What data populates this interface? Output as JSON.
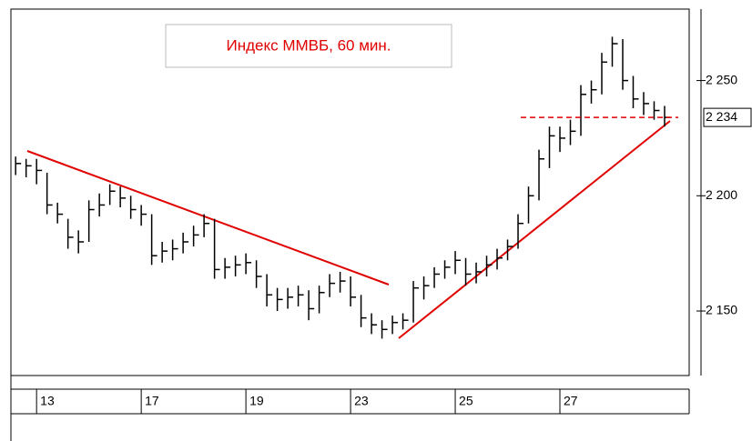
{
  "chart_data": {
    "type": "hlc",
    "title": "Индекс ММВБ, 60 мин.",
    "color": "#000000",
    "x": [
      -0.4,
      -0.2,
      0,
      0.2,
      0.4,
      0.6,
      0.8,
      1,
      1.2,
      1.4,
      1.6,
      1.8,
      2,
      2.2,
      2.4,
      2.6,
      2.8,
      3,
      3.2,
      3.4,
      3.6,
      3.8,
      4,
      4.2,
      4.4,
      4.6,
      4.8,
      5,
      5.2,
      5.4,
      5.6,
      5.8,
      6,
      6.2,
      6.4,
      6.6,
      6.8,
      7,
      7.2,
      7.4,
      7.6,
      7.8,
      8,
      8.2,
      8.4,
      8.6,
      8.8,
      9,
      9.2,
      9.4,
      9.6,
      9.8,
      10,
      10.2,
      10.4,
      10.6,
      10.8,
      11,
      11.2,
      11.4,
      11.6,
      11.8,
      12
    ],
    "close": [
      2214,
      2213,
      2211,
      2196,
      2192,
      2182,
      2180,
      2194,
      2196,
      2202,
      2199,
      2194,
      2192,
      2174,
      2176,
      2177,
      2180,
      2183,
      2188,
      2168,
      2169,
      2170,
      2171,
      2165,
      2157,
      2155,
      2156,
      2157,
      2151,
      2158,
      2162,
      2163,
      2156,
      2147,
      2144,
      2142,
      2145,
      2146,
      2160,
      2161,
      2166,
      2169,
      2172,
      2166,
      2167,
      2170,
      2173,
      2178,
      2188,
      2200,
      2216,
      2226,
      2225,
      2228,
      2244,
      2246,
      2258,
      2266,
      2250,
      2242,
      2240,
      2237,
      2234
    ],
    "high": [
      2217,
      2216,
      2216,
      2210,
      2197,
      2190,
      2185,
      2198,
      2201,
      2205,
      2204,
      2200,
      2196,
      2192,
      2180,
      2181,
      2184,
      2187,
      2192,
      2190,
      2173,
      2174,
      2175,
      2172,
      2166,
      2160,
      2160,
      2161,
      2159,
      2161,
      2166,
      2167,
      2165,
      2157,
      2149,
      2146,
      2148,
      2149,
      2163,
      2165,
      2169,
      2172,
      2176,
      2173,
      2171,
      2174,
      2177,
      2181,
      2192,
      2204,
      2220,
      2230,
      2230,
      2233,
      2248,
      2250,
      2262,
      2269,
      2268,
      2252,
      2245,
      2241,
      2239
    ],
    "low": [
      2209,
      2208,
      2205,
      2192,
      2188,
      2177,
      2175,
      2180,
      2191,
      2196,
      2195,
      2190,
      2187,
      2170,
      2171,
      2172,
      2175,
      2178,
      2182,
      2164,
      2164,
      2165,
      2166,
      2160,
      2152,
      2150,
      2151,
      2152,
      2146,
      2149,
      2156,
      2158,
      2152,
      2143,
      2140,
      2138,
      2140,
      2142,
      2145,
      2155,
      2160,
      2164,
      2166,
      2161,
      2162,
      2165,
      2168,
      2172,
      2177,
      2188,
      2198,
      2212,
      2219,
      2222,
      2226,
      2240,
      2244,
      2256,
      2246,
      2238,
      2235,
      2233,
      2230
    ],
    "xlim": [
      -0.49,
      12.47
    ],
    "ylim": [
      2122,
      2281
    ],
    "yticks": [
      {
        "value": 2150,
        "label": "2 150"
      },
      {
        "value": 2200,
        "label": "2 200"
      },
      {
        "value": 2250,
        "label": "2 250"
      }
    ],
    "xticks": [
      {
        "value": 0,
        "label": "13"
      },
      {
        "value": 2,
        "label": "17"
      },
      {
        "value": 4,
        "label": "19"
      },
      {
        "value": 6,
        "label": "23"
      },
      {
        "value": 8,
        "label": "25"
      },
      {
        "value": 10,
        "label": "27"
      }
    ],
    "last_price": {
      "value": 2234,
      "label": "2 234"
    }
  }
}
